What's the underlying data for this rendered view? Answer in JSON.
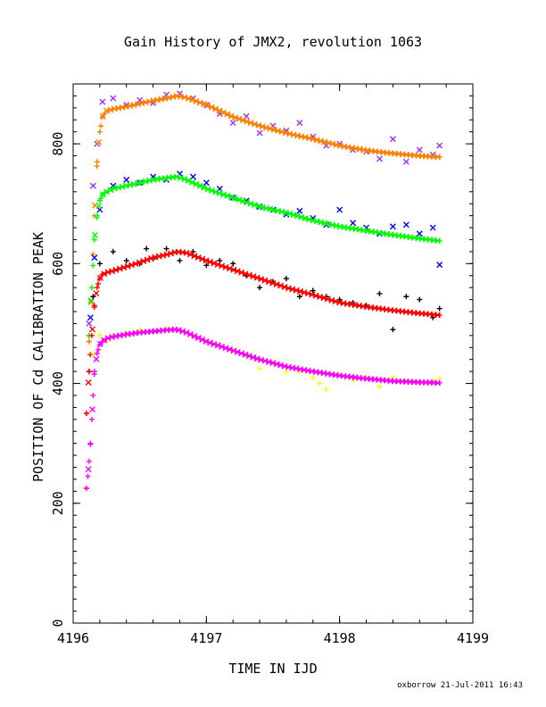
{
  "chart_data": {
    "type": "scatter",
    "title": "Gain History of JMX2, revolution 1063",
    "xlabel": "TIME IN IJD",
    "ylabel": "POSITION OF Cd CALIBRATION PEAK",
    "xlim": [
      4196,
      4199
    ],
    "ylim": [
      0,
      900
    ],
    "x_ticks": [
      4196,
      4197,
      4198,
      4199
    ],
    "x_tick_labels": [
      "4196",
      "4197",
      "4198",
      "4199"
    ],
    "y_ticks": [
      0,
      200,
      400,
      600,
      800
    ],
    "y_tick_labels": [
      "0",
      "200",
      "400",
      "600",
      "800"
    ],
    "legend": "none",
    "grid": false,
    "credit": "oxborrow 21-Jul-2011 16:43",
    "groups": [
      {
        "fit_color": "#ff7f00",
        "raw_color": "#9b30ff",
        "raw_marker": "x",
        "fit": {
          "x": [
            4196.12,
            4196.14,
            4196.16,
            4196.18,
            4196.2,
            4196.22,
            4196.25,
            4196.3,
            4196.4,
            4196.5,
            4196.6,
            4196.7,
            4196.78,
            4196.85,
            4197.0,
            4197.2,
            4197.4,
            4197.6,
            4197.8,
            4198.0,
            4198.2,
            4198.4,
            4198.6,
            4198.75
          ],
          "y": [
            470,
            560,
            680,
            770,
            820,
            845,
            855,
            858,
            862,
            867,
            872,
            876,
            880,
            877,
            865,
            845,
            830,
            818,
            808,
            797,
            789,
            784,
            780,
            778
          ]
        },
        "raw": {
          "x": [
            4196.12,
            4196.15,
            4196.18,
            4196.22,
            4196.3,
            4196.4,
            4196.5,
            4196.6,
            4196.7,
            4196.8,
            4196.9,
            4197.0,
            4197.1,
            4197.2,
            4197.3,
            4197.4,
            4197.5,
            4197.6,
            4197.7,
            4197.8,
            4197.9,
            4198.0,
            4198.1,
            4198.2,
            4198.3,
            4198.4,
            4198.5,
            4198.6,
            4198.7,
            4198.75
          ],
          "y": [
            500,
            730,
            800,
            870,
            876,
            865,
            873,
            868,
            882,
            884,
            876,
            865,
            850,
            835,
            846,
            818,
            830,
            822,
            835,
            812,
            797,
            800,
            790,
            787,
            775,
            808,
            770,
            790,
            782,
            797
          ]
        }
      },
      {
        "fit_color": "#00ff00",
        "raw_color": "#0000ff",
        "raw_marker": "x",
        "fit": {
          "x": [
            4196.12,
            4196.14,
            4196.16,
            4196.18,
            4196.2,
            4196.22,
            4196.25,
            4196.3,
            4196.4,
            4196.5,
            4196.6,
            4196.7,
            4196.78,
            4196.85,
            4197.0,
            4197.2,
            4197.4,
            4197.6,
            4197.8,
            4198.0,
            4198.2,
            4198.4,
            4198.6,
            4198.75
          ],
          "y": [
            480,
            560,
            640,
            680,
            705,
            715,
            720,
            725,
            730,
            735,
            740,
            743,
            745,
            740,
            725,
            710,
            695,
            685,
            672,
            662,
            655,
            648,
            642,
            638
          ]
        },
        "raw": {
          "x": [
            4196.13,
            4196.16,
            4196.2,
            4196.3,
            4196.4,
            4196.5,
            4196.6,
            4196.7,
            4196.8,
            4196.9,
            4197.0,
            4197.1,
            4197.2,
            4197.3,
            4197.4,
            4197.5,
            4197.6,
            4197.7,
            4197.8,
            4197.9,
            4198.0,
            4198.1,
            4198.2,
            4198.3,
            4198.4,
            4198.5,
            4198.6,
            4198.7,
            4198.75
          ],
          "y": [
            510,
            610,
            690,
            730,
            740,
            735,
            745,
            740,
            750,
            745,
            735,
            725,
            710,
            705,
            695,
            690,
            682,
            688,
            676,
            665,
            690,
            668,
            660,
            650,
            662,
            665,
            650,
            660,
            598
          ]
        }
      },
      {
        "fit_color": "#ff0000",
        "raw_color": "#000000",
        "raw_marker": "+",
        "fit": {
          "x": [
            4196.1,
            4196.12,
            4196.14,
            4196.16,
            4196.18,
            4196.2,
            4196.22,
            4196.25,
            4196.3,
            4196.4,
            4196.5,
            4196.6,
            4196.7,
            4196.78,
            4196.85,
            4197.0,
            4197.2,
            4197.4,
            4197.6,
            4197.8,
            4198.0,
            4198.2,
            4198.4,
            4198.6,
            4198.75
          ],
          "y": [
            350,
            420,
            480,
            530,
            560,
            575,
            582,
            585,
            588,
            595,
            602,
            610,
            615,
            620,
            618,
            605,
            590,
            575,
            560,
            548,
            535,
            528,
            522,
            517,
            514
          ]
        },
        "raw": {
          "x": [
            4196.12,
            4196.15,
            4196.2,
            4196.3,
            4196.4,
            4196.5,
            4196.55,
            4196.6,
            4196.7,
            4196.8,
            4196.9,
            4197.0,
            4197.1,
            4197.2,
            4197.3,
            4197.4,
            4197.5,
            4197.6,
            4197.7,
            4197.8,
            4197.9,
            4198.0,
            4198.1,
            4198.2,
            4198.3,
            4198.4,
            4198.5,
            4198.6,
            4198.7,
            4198.75
          ],
          "y": [
            420,
            545,
            600,
            620,
            605,
            600,
            625,
            608,
            625,
            605,
            620,
            597,
            605,
            600,
            580,
            560,
            570,
            575,
            545,
            555,
            545,
            540,
            535,
            530,
            550,
            490,
            545,
            540,
            510,
            525
          ]
        }
      },
      {
        "fit_color": "#ff00ff",
        "raw_color": "#ffff00",
        "raw_marker": "+",
        "fit": {
          "x": [
            4196.1,
            4196.11,
            4196.12,
            4196.13,
            4196.14,
            4196.15,
            4196.16,
            4196.18,
            4196.2,
            4196.22,
            4196.25,
            4196.3,
            4196.4,
            4196.5,
            4196.6,
            4196.7,
            4196.78,
            4196.85,
            4197.0,
            4197.2,
            4197.4,
            4197.6,
            4197.8,
            4198.0,
            4198.2,
            4198.4,
            4198.6,
            4198.75
          ],
          "y": [
            225,
            245,
            270,
            300,
            340,
            380,
            420,
            450,
            465,
            470,
            475,
            478,
            482,
            485,
            487,
            489,
            490,
            485,
            470,
            455,
            440,
            428,
            420,
            413,
            408,
            404,
            402,
            401
          ]
        },
        "raw": {
          "x": [
            4196.15,
            4196.2,
            4196.25,
            4196.3,
            4196.4,
            4196.5,
            4196.6,
            4196.7,
            4196.8,
            4196.9,
            4197.0,
            4197.1,
            4197.2,
            4197.3,
            4197.4,
            4197.5,
            4197.6,
            4197.7,
            4197.8,
            4197.85,
            4197.9,
            4198.0,
            4198.1,
            4198.2,
            4198.3,
            4198.4,
            4198.5,
            4198.6,
            4198.7,
            4198.75
          ],
          "y": [
            450,
            480,
            470,
            480,
            485,
            490,
            485,
            492,
            488,
            480,
            470,
            465,
            455,
            445,
            425,
            435,
            420,
            420,
            410,
            400,
            390,
            415,
            405,
            410,
            395,
            410,
            405,
            400,
            405,
            408
          ]
        }
      }
    ]
  }
}
